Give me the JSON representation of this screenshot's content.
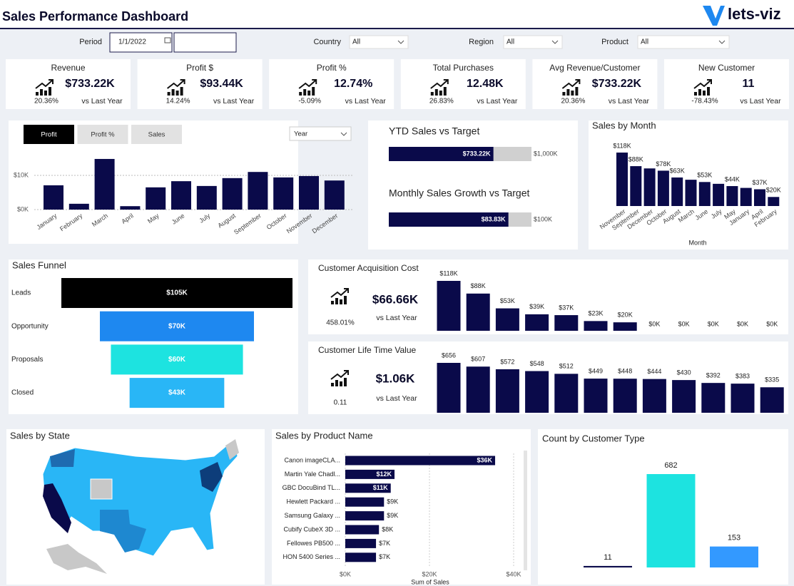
{
  "header": {
    "title": "Sales Performance Dashboard",
    "logo": "lets-viz"
  },
  "filters": [
    {
      "label": "Period",
      "value": "1/1/2022"
    },
    {
      "label": "Country",
      "value": "All"
    },
    {
      "label": "Region",
      "value": "All"
    },
    {
      "label": "Product",
      "value": "All"
    }
  ],
  "kpis": [
    {
      "title": "Revenue",
      "value": "$733.22K",
      "change": "20.36%",
      "change_color": "#2e9e45",
      "comparison": "vs Last Year"
    },
    {
      "title": "Profit $",
      "value": "$93.44K",
      "change": "14.24%",
      "change_color": "#2e9e45",
      "comparison": "vs Last Year"
    },
    {
      "title": "Profit %",
      "value": "12.74%",
      "change": "-5.09%",
      "change_color": "#d23b3b",
      "comparison": "vs Last Year"
    },
    {
      "title": "Total Purchases",
      "value": "12.48K",
      "change": "26.83%",
      "change_color": "#2e9e45",
      "comparison": "vs Last Year"
    },
    {
      "title": "Avg Revenue/Customer",
      "value": "$733.22K",
      "change": "20.36%",
      "change_color": "#2e9e45",
      "comparison": "vs Last Year"
    },
    {
      "title": "New Customer",
      "value": "11",
      "change": "-78.43%",
      "change_color": "#d23b3b",
      "comparison": "vs Last Year"
    }
  ],
  "chart_data": [
    {
      "type": "bar",
      "tabs": [
        "Profit",
        "Profit %",
        "Sales"
      ],
      "dropdown": "Year",
      "categories": [
        "January",
        "February",
        "March",
        "April",
        "May",
        "June",
        "July",
        "August",
        "September",
        "October",
        "November",
        "December"
      ],
      "values": [
        7.1,
        1.7,
        14.8,
        1.0,
        6.5,
        8.3,
        6.9,
        9.2,
        11.0,
        9.4,
        9.8,
        8.5
      ],
      "color": "#0a0a4a",
      "ylim": [
        0,
        15
      ],
      "yticks": [
        {
          "value": 0,
          "label": "$0K"
        },
        {
          "value": 10,
          "label": "$10K"
        }
      ],
      "grid": true
    },
    {
      "type": "bullet",
      "title": "YTD Sales vs Target",
      "values": [
        733.22
      ],
      "value_labels": [
        "$733.22K"
      ],
      "targets": [
        1000
      ],
      "target_labels": [
        "$1,000K"
      ],
      "color": "#0a0a4a",
      "target_color": "#d0d0d0"
    },
    {
      "type": "bullet",
      "title": "Monthly Sales Growth vs Target",
      "values": [
        83.83
      ],
      "value_labels": [
        "$83.83K"
      ],
      "targets": [
        100
      ],
      "target_labels": [
        "$100K"
      ],
      "color": "#0a0a4a",
      "target_color": "#d0d0d0"
    },
    {
      "type": "column",
      "title": "Sales by Month",
      "x_label": "Month",
      "categories": [
        "November",
        "September",
        "December",
        "October",
        "August",
        "March",
        "June",
        "July",
        "May",
        "January",
        "April",
        "February"
      ],
      "values": [
        118,
        88,
        83,
        78,
        63,
        58,
        53,
        49,
        44,
        40,
        37,
        20
      ],
      "value_labels": [
        "$118K",
        "$88K",
        null,
        "$78K",
        "$63K",
        null,
        "$53K",
        null,
        "$44K",
        null,
        "$37K",
        "$20K"
      ],
      "color": "#0a0a4a"
    },
    {
      "type": "funnel",
      "title": "Sales Funnel",
      "categories": [
        "Leads",
        "Opportunity",
        "Proposals",
        "Closed"
      ],
      "values": [
        105,
        70,
        60,
        43
      ],
      "value_labels": [
        "$105K",
        "$70K",
        "$60K",
        "$43K"
      ],
      "colors": [
        "#000000",
        "#1e88f0",
        "#1de3e0",
        "#29b6f6"
      ]
    },
    {
      "type": "kpi_bar",
      "title": "Customer Acquisition Cost",
      "kpi": {
        "value": "$66.66K",
        "comparison": "vs Last Year",
        "change": "458.01%"
      },
      "values": [
        118,
        88,
        53,
        39,
        37,
        23,
        20,
        0,
        0,
        0,
        0,
        0
      ],
      "value_labels": [
        "$118K",
        "$88K",
        "$53K",
        "$39K",
        "$37K",
        "$23K",
        "$20K",
        "$0K",
        "$0K",
        "$0K",
        "$0K",
        "$0K"
      ],
      "color": "#0a0a4a"
    },
    {
      "type": "kpi_bar",
      "title": "Customer Life Time Value",
      "kpi": {
        "value": "$1.06K",
        "comparison": "vs Last Year",
        "change": "0.11"
      },
      "values": [
        656,
        607,
        572,
        548,
        512,
        449,
        448,
        444,
        430,
        392,
        383,
        335
      ],
      "value_labels": [
        "$656",
        "$607",
        "$572",
        "$548",
        "$512",
        "$449",
        "$448",
        "$444",
        "$430",
        "$392",
        "$383",
        "$335"
      ],
      "color": "#0a0a4a"
    },
    {
      "type": "map",
      "title": "Sales by State"
    },
    {
      "type": "hbar",
      "title": "Sales by Product Name",
      "x_label": "Sum of Sales",
      "categories": [
        "Canon imageCLA...",
        "Martin Yale Chadl...",
        "GBC DocuBind TL...",
        "Hewlett Packard ...",
        "Samsung Galaxy ...",
        "Cubify CubeX 3D ...",
        "Fellowes PB500 ...",
        "HON 5400 Series ..."
      ],
      "values": [
        35.6,
        11.7,
        10.8,
        9.2,
        9.2,
        8.0,
        7.3,
        7.3
      ],
      "value_labels": [
        "$36K",
        "$12K",
        "$11K",
        "$9K",
        "$9K",
        "$8K",
        "$7K",
        "$7K"
      ],
      "color": "#0a0a4a",
      "xlim": [
        0,
        40
      ],
      "xticks": [
        {
          "value": 0,
          "label": "$0K"
        },
        {
          "value": 20,
          "label": "$20K"
        },
        {
          "value": 40,
          "label": "$40K"
        }
      ],
      "grid": true
    },
    {
      "type": "count_bar",
      "title": "Count by Customer Type",
      "values": [
        11,
        682,
        153
      ],
      "colors": [
        "#0a0a4a",
        "#1de3e0",
        "#3399ff"
      ]
    }
  ]
}
